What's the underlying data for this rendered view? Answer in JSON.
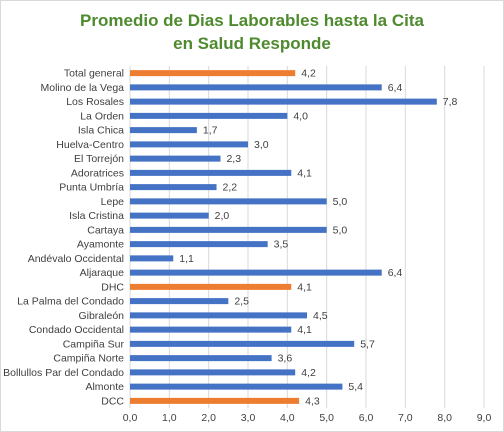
{
  "chart_data": {
    "type": "bar",
    "orientation": "horizontal",
    "title": [
      "Promedio de Dias Laborables hasta la Cita",
      "en Salud Responde"
    ],
    "categories": [
      "Total general",
      "Molino de la Vega",
      "Los Rosales",
      "La Orden",
      "Isla Chica",
      "Huelva-Centro",
      "El Torrejón",
      "Adoratrices",
      "Punta Umbría",
      "Lepe",
      "Isla Cristina",
      "Cartaya",
      "Ayamonte",
      "Andévalo Occidental",
      "Aljaraque",
      "DHC",
      "La Palma del Condado",
      "Gibraleón",
      "Condado Occidental",
      "Campiña Sur",
      "Campiña Norte",
      "Bollullos Par del Condado",
      "Almonte",
      "DCC"
    ],
    "values": [
      4.2,
      6.4,
      7.8,
      4.0,
      1.7,
      3.0,
      2.3,
      4.1,
      2.2,
      5.0,
      2.0,
      5.0,
      3.5,
      1.1,
      6.4,
      4.1,
      2.5,
      4.5,
      4.1,
      5.7,
      3.6,
      4.2,
      5.4,
      4.3
    ],
    "value_labels": [
      "4,2",
      "6,4",
      "7,8",
      "4,0",
      "1,7",
      "3,0",
      "2,3",
      "4,1",
      "2,2",
      "5,0",
      "2,0",
      "5,0",
      "3,5",
      "1,1",
      "6,4",
      "4,1",
      "2,5",
      "4,5",
      "4,1",
      "5,7",
      "3,6",
      "4,2",
      "5,4",
      "4,3"
    ],
    "highlighted": [
      "Total general",
      "DHC",
      "DCC"
    ],
    "x_ticks": [
      "0,0",
      "1,0",
      "2,0",
      "3,0",
      "4,0",
      "5,0",
      "6,0",
      "7,0",
      "8,0",
      "9,0"
    ],
    "xlim": [
      0,
      9
    ],
    "grid": "vertical",
    "colors": {
      "bar": "#4472c4",
      "highlight": "#ed7d31",
      "grid": "#d9d9d9",
      "title": "#4e8a2e"
    }
  }
}
